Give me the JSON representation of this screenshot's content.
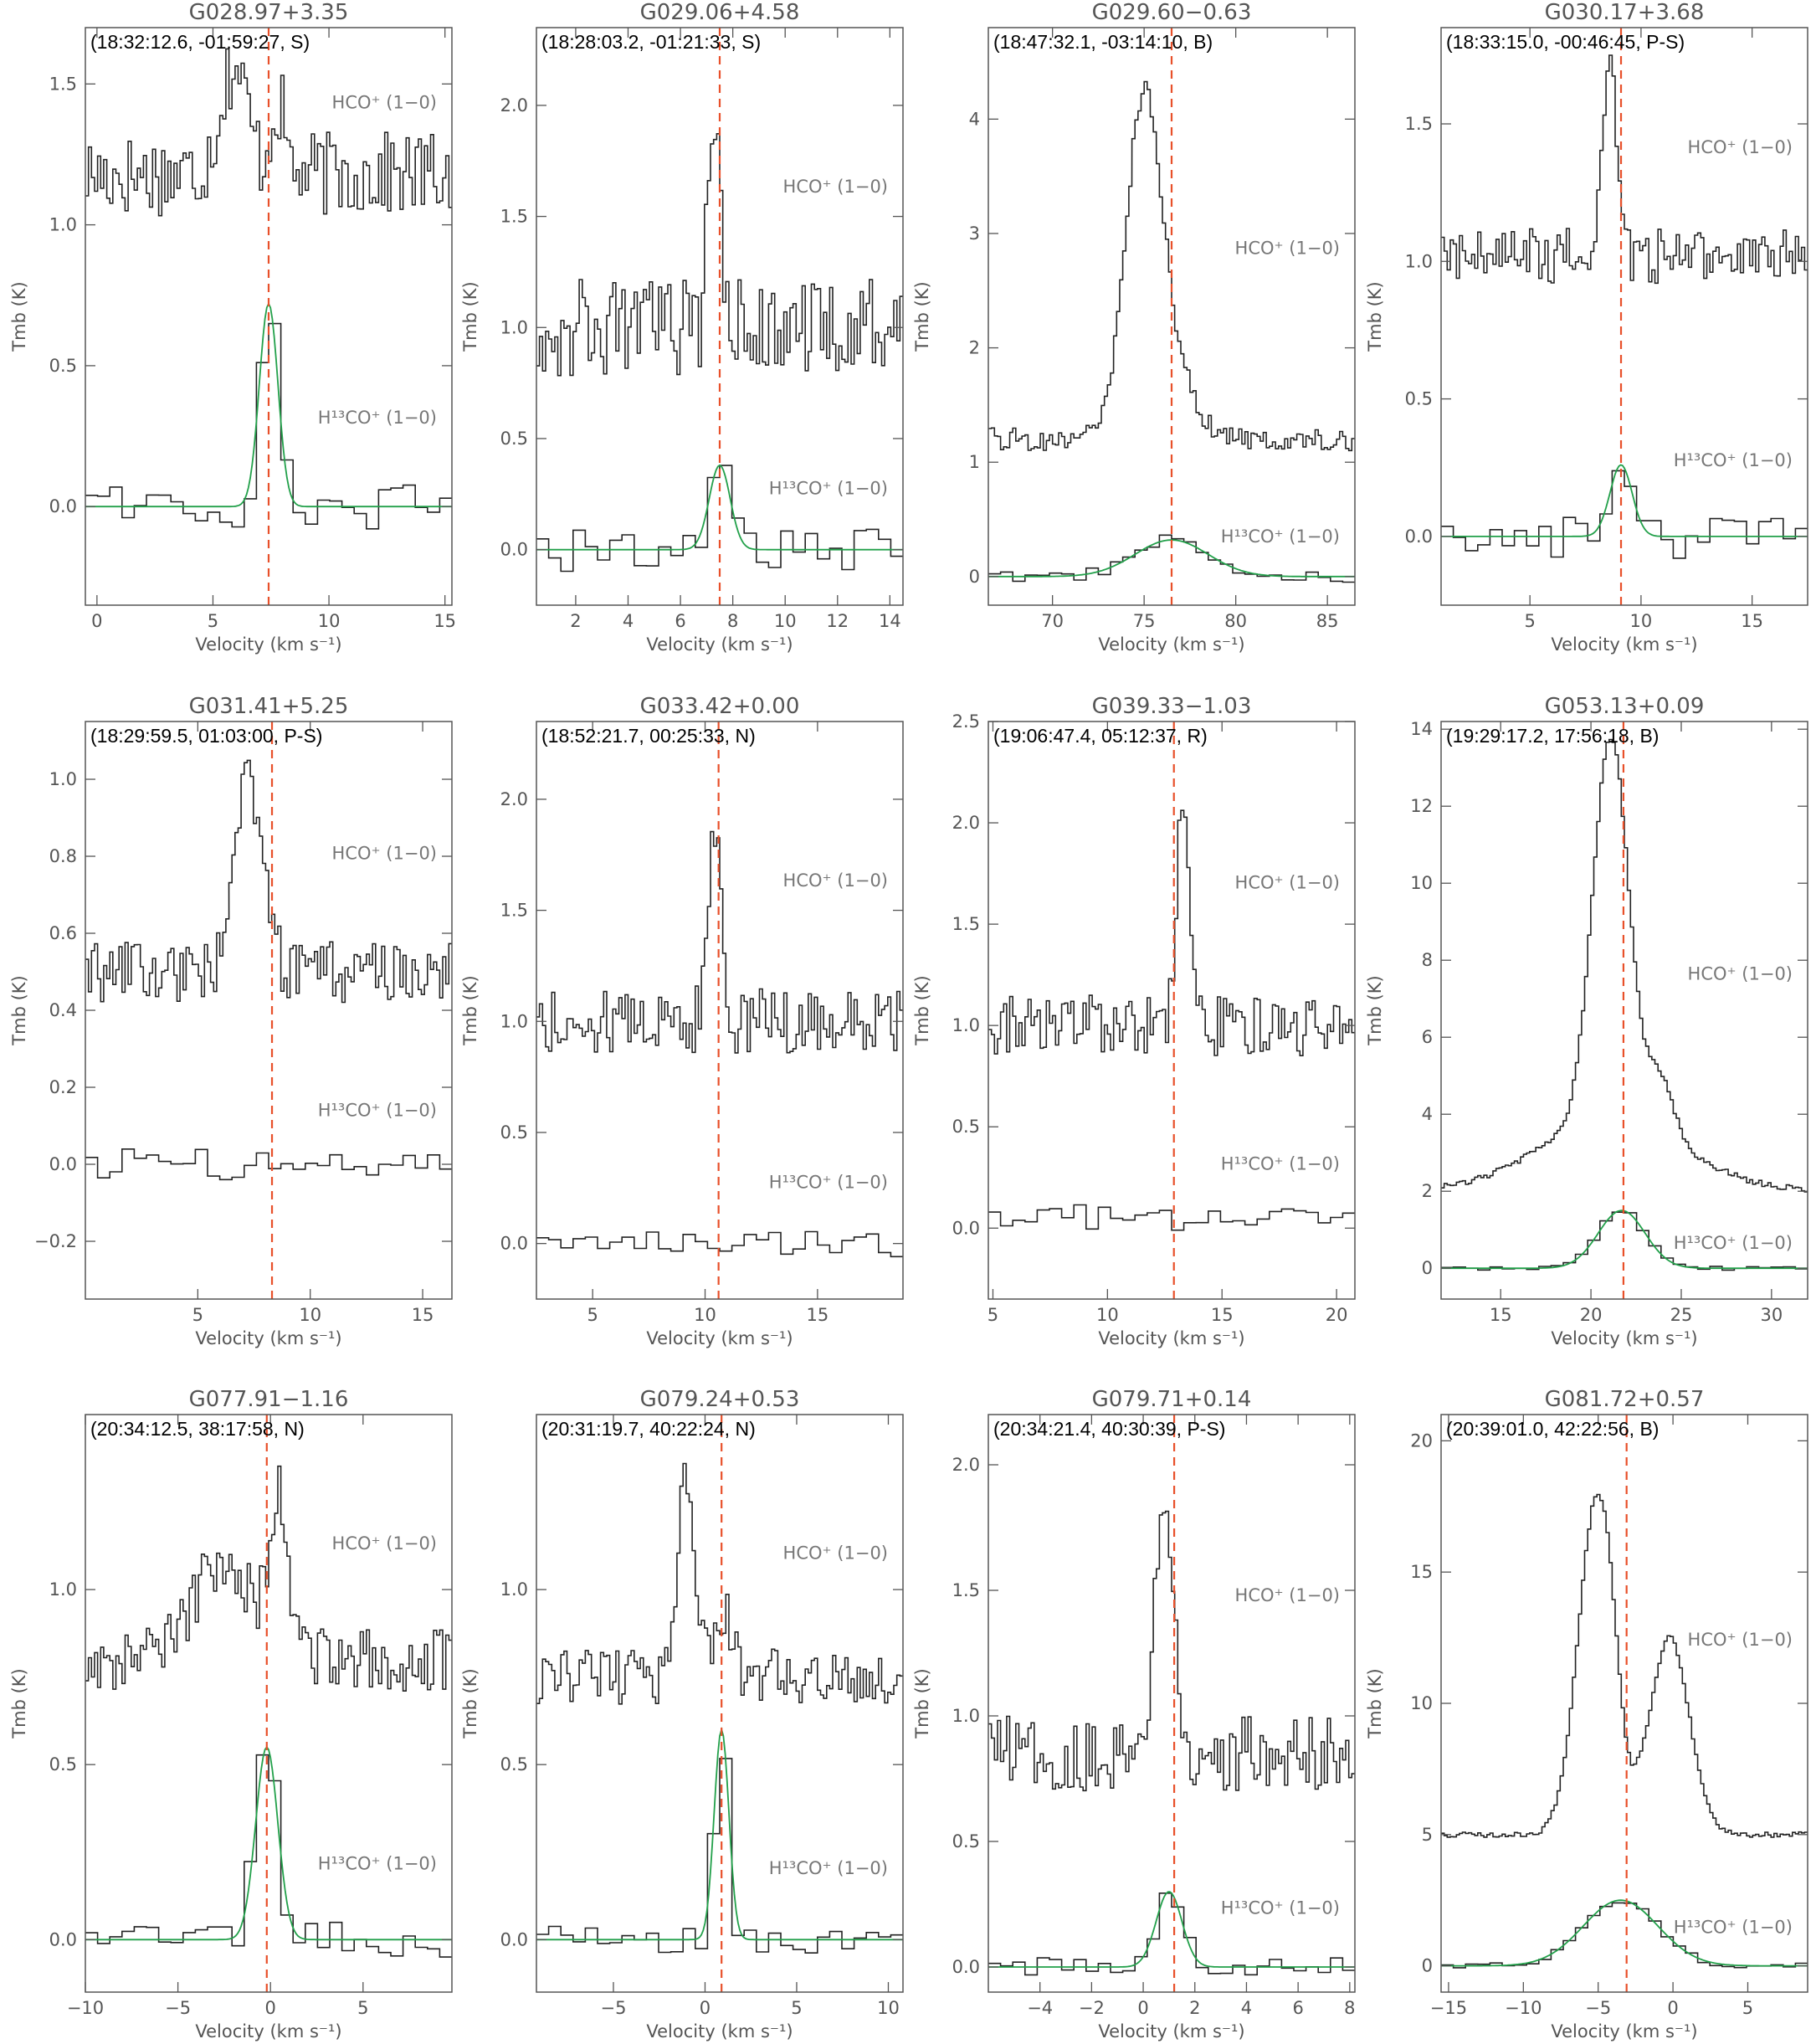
{
  "figure": {
    "xlabel": "Velocity (km s⁻¹)",
    "ylabel": "Tmb (K)",
    "line_upper": "HCO⁺ (1−0)",
    "line_lower": "H¹³CO⁺ (1−0)"
  },
  "chart_data": [
    {
      "type": "line",
      "title": "G028.97+3.35",
      "coord": "(18:32:12.6, -01:59:27, S)",
      "xlim": [
        -0.5,
        15.3
      ],
      "ylim": [
        -0.35,
        1.7
      ],
      "xticks": [
        0,
        5,
        10,
        15
      ],
      "yticks": [
        0.0,
        0.5,
        1.0,
        1.5
      ],
      "vlsr": 7.4,
      "hco": {
        "baseline": 1.18,
        "noise": 0.15,
        "comps": [
          [
            5.9,
            0.38,
            0.6
          ],
          [
            7.8,
            0.25,
            0.3
          ]
        ]
      },
      "h13co": {
        "baseline": 0.0,
        "noise": 0.08,
        "comps": [
          [
            7.4,
            0.72,
            0.4
          ]
        ],
        "fit": true
      }
    },
    {
      "type": "line",
      "title": "G029.06+4.58",
      "coord": "(18:28:03.2, -01:21:33, S)",
      "xlim": [
        0.5,
        14.5
      ],
      "ylim": [
        -0.25,
        2.35
      ],
      "xticks": [
        2,
        4,
        6,
        8,
        10,
        12,
        14
      ],
      "yticks": [
        0.0,
        0.5,
        1.0,
        1.5,
        2.0
      ],
      "vlsr": 7.5,
      "hco": {
        "baseline": 1.0,
        "noise": 0.22,
        "comps": [
          [
            7.3,
            1.05,
            0.22
          ]
        ]
      },
      "h13co": {
        "baseline": 0.0,
        "noise": 0.1,
        "comps": [
          [
            7.5,
            0.38,
            0.4
          ]
        ],
        "fit": true
      }
    },
    {
      "type": "line",
      "title": "G029.60−0.63",
      "coord": "(18:47:32.1, -03:14:10, B)",
      "xlim": [
        66.5,
        86.5
      ],
      "ylim": [
        -0.25,
        4.8
      ],
      "xticks": [
        70,
        75,
        80,
        85
      ],
      "yticks": [
        0,
        1,
        2,
        3,
        4
      ],
      "vlsr": 76.5,
      "hco": {
        "baseline": 1.2,
        "noise": 0.1,
        "comps": [
          [
            75.0,
            3.0,
            1.0
          ],
          [
            77.0,
            0.4,
            1.0
          ]
        ]
      },
      "h13co": {
        "baseline": 0.0,
        "noise": 0.05,
        "comps": [
          [
            76.5,
            0.32,
            2.0
          ]
        ],
        "fit": true
      }
    },
    {
      "type": "line",
      "title": "G030.17+3.68",
      "coord": "(18:33:15.0, -00:46:45, P-S)",
      "xlim": [
        1.0,
        17.5
      ],
      "ylim": [
        -0.25,
        1.85
      ],
      "xticks": [
        5,
        10,
        15
      ],
      "yticks": [
        0.0,
        0.5,
        1.0,
        1.5
      ],
      "vlsr": 9.1,
      "hco": {
        "baseline": 1.02,
        "noise": 0.1,
        "comps": [
          [
            8.6,
            0.7,
            0.3
          ]
        ]
      },
      "h13co": {
        "baseline": 0.0,
        "noise": 0.08,
        "comps": [
          [
            9.1,
            0.26,
            0.5
          ]
        ],
        "fit": true
      }
    },
    {
      "type": "line",
      "title": "G031.41+5.25",
      "coord": "(18:29:59.5, 01:03:00, P-S)",
      "xlim": [
        0.0,
        16.3
      ],
      "ylim": [
        -0.35,
        1.15
      ],
      "xticks": [
        5,
        10,
        15
      ],
      "yticks": [
        -0.2,
        0.0,
        0.2,
        0.4,
        0.6,
        0.8,
        1.0
      ],
      "vlsr": 8.3,
      "hco": {
        "baseline": 0.5,
        "noise": 0.08,
        "comps": [
          [
            7.3,
            0.5,
            0.6
          ]
        ]
      },
      "h13co": {
        "baseline": 0.0,
        "noise": 0.04,
        "comps": [],
        "fit": false
      }
    },
    {
      "type": "line",
      "title": "G033.42+0.00",
      "coord": "(18:52:21.7, 00:25:33, N)",
      "xlim": [
        2.5,
        18.8
      ],
      "ylim": [
        -0.25,
        2.35
      ],
      "xticks": [
        5,
        10,
        15
      ],
      "yticks": [
        0.0,
        0.5,
        1.0,
        1.5,
        2.0
      ],
      "vlsr": 10.6,
      "hco": {
        "baseline": 1.0,
        "noise": 0.15,
        "comps": [
          [
            10.4,
            0.85,
            0.3
          ]
        ]
      },
      "h13co": {
        "baseline": 0.0,
        "noise": 0.06,
        "comps": [],
        "fit": false
      }
    },
    {
      "type": "line",
      "title": "G039.33−1.03",
      "coord": "(19:06:47.4, 05:12:37, R)",
      "xlim": [
        4.8,
        20.8
      ],
      "ylim": [
        -0.35,
        2.5
      ],
      "xticks": [
        5,
        10,
        15,
        20
      ],
      "yticks": [
        0.0,
        0.5,
        1.0,
        1.5,
        2.0,
        2.5
      ],
      "vlsr": 12.9,
      "hco": {
        "baseline": 1.0,
        "noise": 0.15,
        "comps": [
          [
            13.3,
            1.1,
            0.25
          ]
        ]
      },
      "h13co": {
        "baseline": 0.05,
        "noise": 0.07,
        "comps": [],
        "fit": false
      }
    },
    {
      "type": "line",
      "title": "G053.13+0.09",
      "coord": "(19:29:17.2, 17:56:18, B)",
      "xlim": [
        11.7,
        32.0
      ],
      "ylim": [
        -0.8,
        14.2
      ],
      "xticks": [
        15,
        20,
        25,
        30
      ],
      "yticks": [
        0,
        2,
        4,
        6,
        8,
        10,
        12,
        14
      ],
      "vlsr": 21.8,
      "hco": {
        "baseline": 2.0,
        "noise": 0.08,
        "comps": [
          [
            21.1,
            10.0,
            1.0
          ],
          [
            21.1,
            1.8,
            4.0
          ],
          [
            23.9,
            1.5,
            0.7
          ]
        ]
      },
      "h13co": {
        "baseline": 0.0,
        "noise": 0.05,
        "comps": [
          [
            21.7,
            1.5,
            1.3
          ]
        ],
        "fit": true
      }
    },
    {
      "type": "line",
      "title": "G077.91−1.16",
      "coord": "(20:34:12.5, 38:17:58, N)",
      "xlim": [
        -10.0,
        9.8
      ],
      "ylim": [
        -0.15,
        1.5
      ],
      "xticks": [
        -10,
        -5,
        0,
        5
      ],
      "yticks": [
        0.0,
        0.5,
        1.0
      ],
      "vlsr": -0.2,
      "hco": {
        "baseline": 0.8,
        "noise": 0.09,
        "comps": [
          [
            -2.5,
            0.3,
            1.5
          ],
          [
            0.5,
            0.45,
            0.5
          ]
        ]
      },
      "h13co": {
        "baseline": 0.0,
        "noise": 0.05,
        "comps": [
          [
            -0.2,
            0.55,
            0.6
          ]
        ],
        "fit": true
      }
    },
    {
      "type": "line",
      "title": "G079.24+0.53",
      "coord": "(20:31:19.7, 40:22:24, N)",
      "xlim": [
        -9.2,
        10.8
      ],
      "ylim": [
        -0.15,
        1.5
      ],
      "xticks": [
        -5,
        0,
        5,
        10
      ],
      "yticks": [
        0.0,
        0.5,
        1.0
      ],
      "vlsr": 0.9,
      "hco": {
        "baseline": 0.75,
        "noise": 0.08,
        "comps": [
          [
            -1.0,
            0.55,
            0.5
          ],
          [
            1.0,
            0.2,
            0.5
          ]
        ]
      },
      "h13co": {
        "baseline": 0.0,
        "noise": 0.04,
        "comps": [
          [
            0.9,
            0.6,
            0.4
          ]
        ],
        "fit": true
      }
    },
    {
      "type": "line",
      "title": "G079.71+0.14",
      "coord": "(20:34:21.4, 40:30:39, P-S)",
      "xlim": [
        -6.0,
        8.2
      ],
      "ylim": [
        -0.1,
        2.2
      ],
      "xticks": [
        -4,
        -2,
        0,
        2,
        4,
        6,
        8
      ],
      "yticks": [
        0.0,
        0.5,
        1.0,
        1.5,
        2.0
      ],
      "vlsr": 1.2,
      "hco": {
        "baseline": 0.85,
        "noise": 0.15,
        "comps": [
          [
            0.8,
            1.05,
            0.35
          ]
        ]
      },
      "h13co": {
        "baseline": 0.0,
        "noise": 0.04,
        "comps": [
          [
            1.0,
            0.3,
            0.5
          ]
        ],
        "fit": true
      }
    },
    {
      "type": "line",
      "title": "G081.72+0.57",
      "coord": "(20:39:01.0, 42:22:56, B)",
      "xlim": [
        -15.5,
        9.0
      ],
      "ylim": [
        -1.0,
        21.0
      ],
      "xticks": [
        -15,
        -10,
        -5,
        0,
        5
      ],
      "yticks": [
        0,
        5,
        10,
        15,
        20
      ],
      "vlsr": -3.1,
      "hco": {
        "baseline": 5.0,
        "noise": 0.1,
        "comps": [
          [
            -5.0,
            13.0,
            1.3
          ],
          [
            -0.2,
            7.5,
            1.3
          ],
          [
            -3.1,
            -1.5,
            0.6
          ]
        ]
      },
      "h13co": {
        "baseline": 0.0,
        "noise": 0.1,
        "comps": [
          [
            -3.5,
            2.5,
            2.5
          ]
        ],
        "fit": true
      }
    }
  ]
}
